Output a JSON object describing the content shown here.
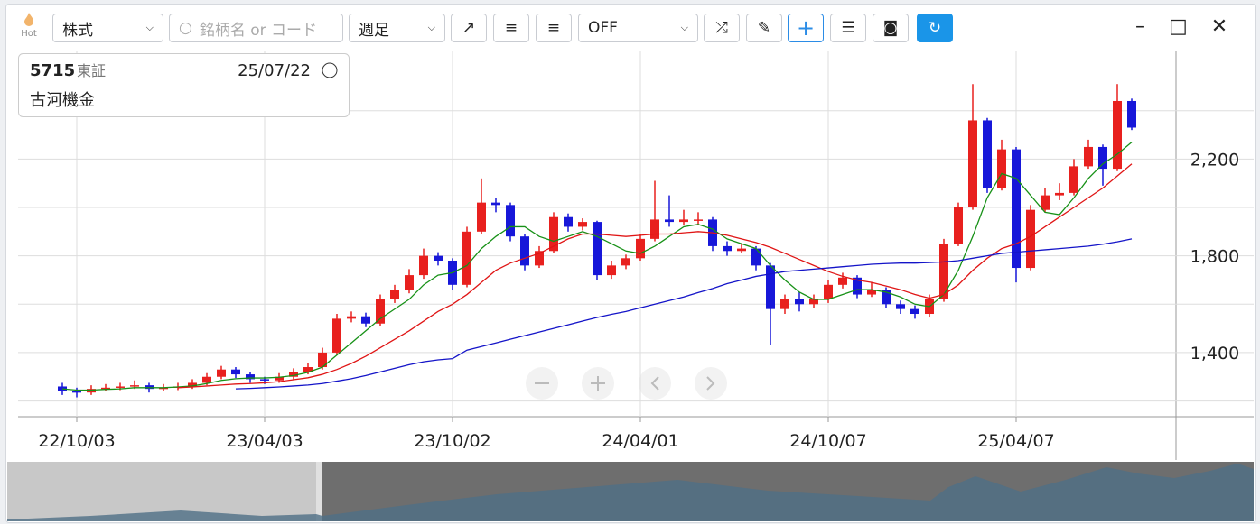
{
  "ui": {
    "hot": "Hot",
    "market": "株式",
    "search_placeholder": "銘柄名 or コード",
    "period": "週足",
    "indicator": "OFF",
    "code": "5715",
    "exchange": "東証",
    "date": "25/07/22",
    "name": "古河機金"
  },
  "chart_data": {
    "type": "candlestick",
    "categories": [
      null,
      "22/10/03",
      null,
      null,
      null,
      null,
      null,
      null,
      null,
      null,
      null,
      null,
      null,
      null,
      "23/04/03",
      null,
      null,
      null,
      null,
      null,
      null,
      null,
      null,
      null,
      null,
      null,
      null,
      "23/10/02",
      null,
      null,
      null,
      null,
      null,
      null,
      null,
      null,
      null,
      null,
      null,
      null,
      "24/04/01",
      null,
      null,
      null,
      null,
      null,
      null,
      null,
      null,
      null,
      null,
      null,
      null,
      "24/10/07",
      null,
      null,
      null,
      null,
      null,
      null,
      null,
      null,
      null,
      null,
      null,
      null,
      "25/04/07",
      null,
      null,
      null,
      null,
      null,
      null,
      null,
      null
    ],
    "open": [
      1260,
      1240,
      1235,
      1250,
      1255,
      1260,
      1265,
      1250,
      1255,
      1260,
      1275,
      1300,
      1330,
      1310,
      1290,
      1285,
      1300,
      1320,
      1340,
      1400,
      1540,
      1550,
      1520,
      1620,
      1660,
      1720,
      1800,
      1780,
      1680,
      1900,
      2020,
      2010,
      1880,
      1760,
      1820,
      1960,
      1920,
      1940,
      1720,
      1760,
      1790,
      1870,
      1950,
      1940,
      1950,
      1950,
      1840,
      1820,
      1830,
      1760,
      1580,
      1620,
      1600,
      1620,
      1680,
      1710,
      1640,
      1660,
      1600,
      1580,
      1560,
      1620,
      1850,
      2000,
      2360,
      2080,
      2240,
      1750,
      1990,
      2050,
      2060,
      2170,
      2250,
      2160,
      2440
    ],
    "high": [
      1275,
      1255,
      1265,
      1270,
      1275,
      1285,
      1275,
      1270,
      1275,
      1290,
      1315,
      1345,
      1340,
      1320,
      1300,
      1315,
      1335,
      1355,
      1420,
      1560,
      1570,
      1565,
      1640,
      1680,
      1745,
      1830,
      1815,
      1790,
      1920,
      2120,
      2040,
      2020,
      1890,
      1840,
      1980,
      1975,
      1955,
      1945,
      1780,
      1805,
      1890,
      2110,
      2050,
      1990,
      1980,
      1960,
      1860,
      1850,
      1840,
      1770,
      1640,
      1650,
      1640,
      1700,
      1730,
      1720,
      1690,
      1670,
      1615,
      1595,
      1640,
      1870,
      2020,
      2510,
      2370,
      2280,
      2250,
      2010,
      2080,
      2100,
      2200,
      2280,
      2260,
      2510,
      2450
    ],
    "low": [
      1225,
      1215,
      1225,
      1240,
      1245,
      1250,
      1235,
      1240,
      1245,
      1250,
      1265,
      1290,
      1295,
      1275,
      1270,
      1275,
      1290,
      1310,
      1330,
      1390,
      1525,
      1505,
      1510,
      1605,
      1645,
      1705,
      1760,
      1660,
      1670,
      1890,
      1980,
      1860,
      1740,
      1750,
      1810,
      1900,
      1905,
      1700,
      1705,
      1745,
      1780,
      1860,
      1920,
      1925,
      1930,
      1820,
      1800,
      1810,
      1740,
      1430,
      1560,
      1570,
      1585,
      1605,
      1665,
      1625,
      1630,
      1585,
      1560,
      1540,
      1545,
      1610,
      1840,
      1990,
      2060,
      2070,
      1690,
      1740,
      1980,
      2030,
      2050,
      2160,
      2090,
      2150,
      2320
    ],
    "close": [
      1240,
      1235,
      1250,
      1255,
      1260,
      1265,
      1250,
      1255,
      1260,
      1275,
      1300,
      1330,
      1310,
      1290,
      1285,
      1300,
      1320,
      1340,
      1400,
      1540,
      1550,
      1520,
      1620,
      1660,
      1720,
      1800,
      1780,
      1680,
      1900,
      2020,
      2010,
      1880,
      1760,
      1820,
      1960,
      1920,
      1940,
      1720,
      1760,
      1790,
      1870,
      1950,
      1940,
      1950,
      1950,
      1840,
      1820,
      1830,
      1760,
      1580,
      1620,
      1600,
      1620,
      1680,
      1710,
      1640,
      1660,
      1600,
      1580,
      1560,
      1620,
      1850,
      2000,
      2360,
      2080,
      2240,
      1750,
      1990,
      2050,
      2060,
      2170,
      2250,
      2160,
      2440,
      2330
    ],
    "up_color": "#e8201e",
    "down_color": "#1717d9",
    "series": [
      {
        "color": "#179117",
        "values": [
          1250,
          1245,
          1245,
          1248,
          1250,
          1255,
          1255,
          1255,
          1258,
          1262,
          1272,
          1285,
          1292,
          1295,
          1295,
          1298,
          1305,
          1318,
          1340,
          1390,
          1440,
          1490,
          1540,
          1580,
          1620,
          1680,
          1720,
          1730,
          1760,
          1830,
          1880,
          1920,
          1920,
          1880,
          1860,
          1880,
          1900,
          1880,
          1850,
          1820,
          1810,
          1840,
          1880,
          1920,
          1930,
          1910,
          1870,
          1850,
          1830,
          1760,
          1700,
          1650,
          1620,
          1620,
          1640,
          1660,
          1660,
          1650,
          1630,
          1600,
          1590,
          1640,
          1740,
          1880,
          2040,
          2140,
          2120,
          2050,
          1980,
          1970,
          2040,
          2120,
          2180,
          2220,
          2270
        ]
      },
      {
        "color": "#e01515",
        "values": [
          null,
          null,
          null,
          null,
          null,
          null,
          null,
          null,
          1255,
          1258,
          1262,
          1266,
          1270,
          1272,
          1275,
          1280,
          1288,
          1296,
          1310,
          1330,
          1355,
          1385,
          1420,
          1455,
          1490,
          1530,
          1570,
          1600,
          1640,
          1690,
          1740,
          1770,
          1790,
          1810,
          1840,
          1870,
          1890,
          1890,
          1885,
          1880,
          1885,
          1890,
          1890,
          1895,
          1900,
          1895,
          1885,
          1870,
          1855,
          1835,
          1810,
          1785,
          1760,
          1735,
          1715,
          1700,
          1690,
          1675,
          1660,
          1640,
          1625,
          1640,
          1680,
          1740,
          1790,
          1830,
          1850,
          1880,
          1920,
          1960,
          2000,
          2040,
          2080,
          2130,
          2180
        ]
      },
      {
        "color": "#1414c8",
        "values": [
          null,
          null,
          null,
          null,
          null,
          null,
          null,
          null,
          null,
          null,
          null,
          null,
          1250,
          1252,
          1255,
          1258,
          1262,
          1266,
          1272,
          1282,
          1292,
          1305,
          1320,
          1335,
          1350,
          1362,
          1370,
          1375,
          1410,
          1425,
          1440,
          1455,
          1470,
          1485,
          1500,
          1515,
          1530,
          1545,
          1558,
          1570,
          1585,
          1600,
          1615,
          1630,
          1648,
          1665,
          1685,
          1700,
          1715,
          1725,
          1735,
          1740,
          1745,
          1750,
          1755,
          1760,
          1765,
          1768,
          1770,
          1770,
          1772,
          1775,
          1780,
          1790,
          1800,
          1810,
          1815,
          1820,
          1825,
          1830,
          1835,
          1840,
          1848,
          1858,
          1870
        ]
      }
    ],
    "ylim": [
      1135,
      2645
    ],
    "yticks": [
      {
        "value": 1400,
        "label": "1,400"
      },
      {
        "value": 1800,
        "label": "1,800"
      },
      {
        "value": 2200,
        "label": "2,200"
      }
    ],
    "minor_grid": [
      1200,
      1600,
      2000,
      2400
    ],
    "grid": true
  }
}
